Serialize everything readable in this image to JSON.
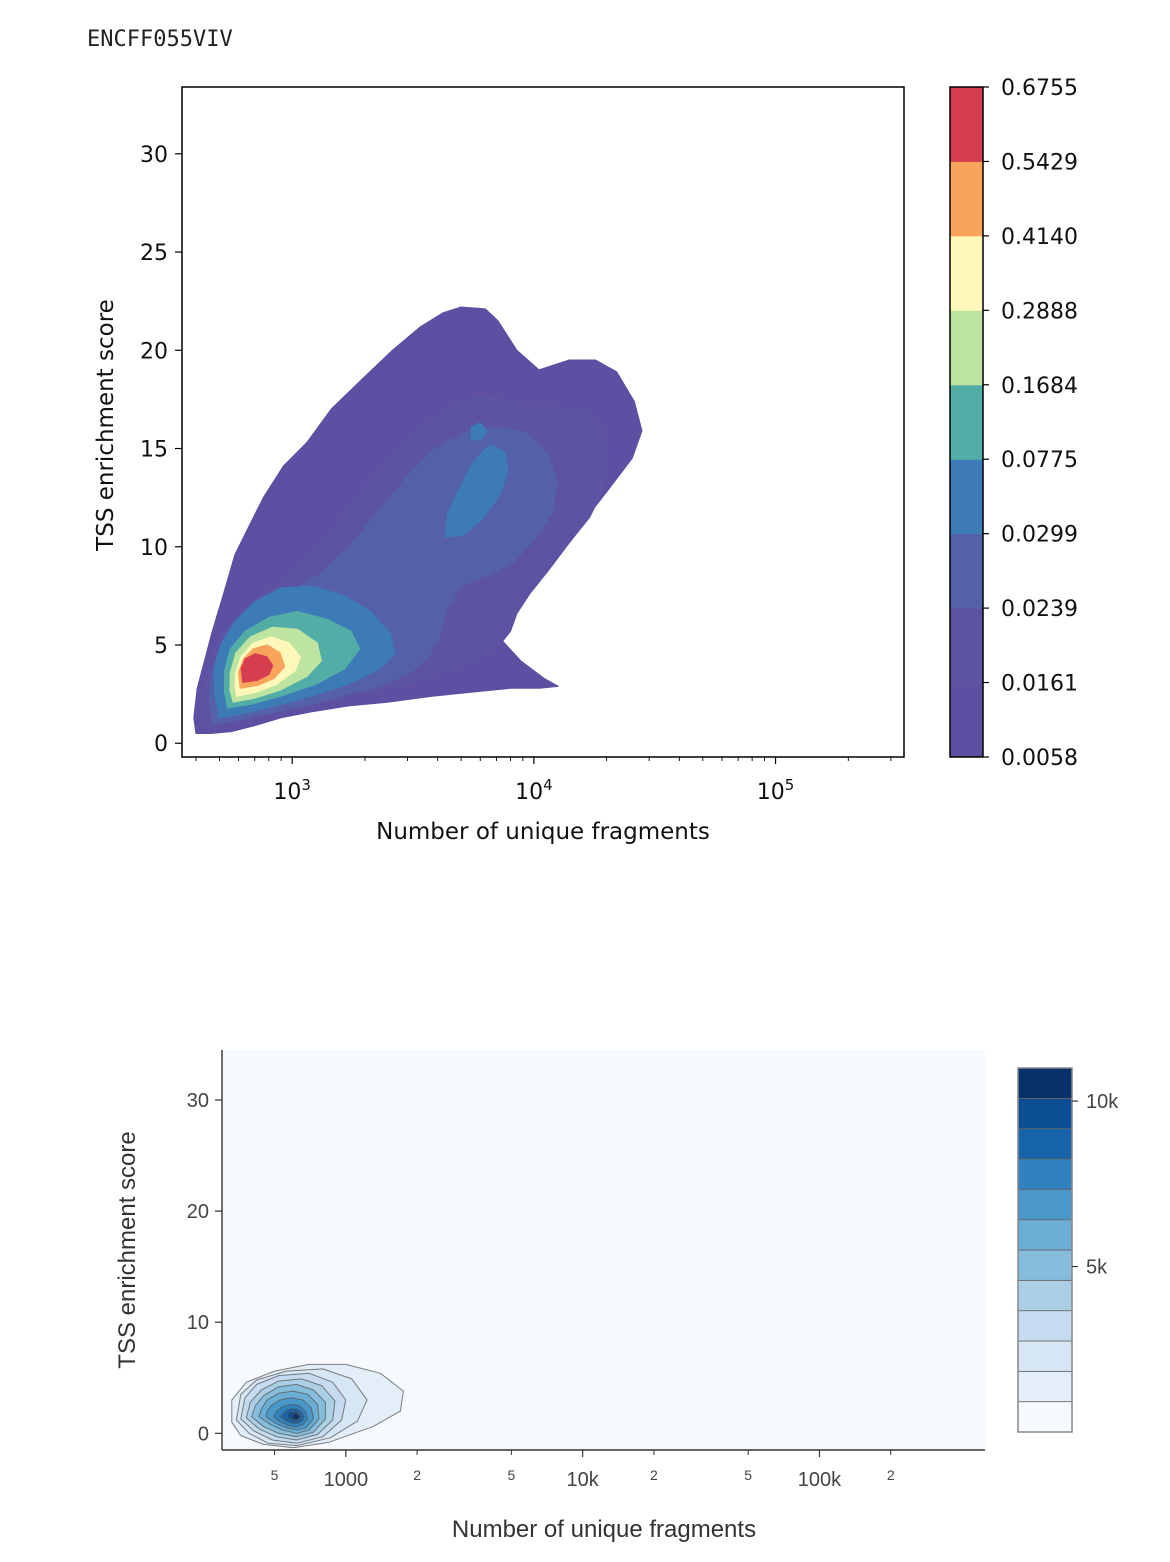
{
  "page": {
    "title": "ENCFF055VIV"
  },
  "chart_data": [
    {
      "type": "heatmap",
      "subtype": "filled-kde-contour",
      "xlabel": "Number of unique fragments",
      "ylabel": "TSS enrichment score",
      "xscale": "log",
      "xlim": [
        350,
        340000
      ],
      "ylim": [
        -0.7,
        33.4
      ],
      "x_ticks": [
        {
          "value": 1000,
          "base": "10",
          "exp": "3"
        },
        {
          "value": 10000,
          "base": "10",
          "exp": "4"
        },
        {
          "value": 100000,
          "base": "10",
          "exp": "5"
        }
      ],
      "y_ticks": [
        0,
        5,
        10,
        15,
        20,
        25,
        30
      ],
      "colorbar": {
        "levels": [
          "0.0058",
          "0.0161",
          "0.0239",
          "0.0299",
          "0.0775",
          "0.1684",
          "0.2888",
          "0.4140",
          "0.5429",
          "0.6755"
        ],
        "colors": [
          "#5e4fa2",
          "#5c53a3",
          "#5460a8",
          "#3d7bb7",
          "#52ada7",
          "#bde4a0",
          "#fff8b8",
          "#f9a45c",
          "#d53e4f"
        ]
      }
    },
    {
      "type": "heatmap",
      "subtype": "kde-contour",
      "xlabel": "Number of unique fragments",
      "ylabel": "TSS enrichment score",
      "xscale": "log",
      "xlim": [
        300,
        500000
      ],
      "ylim": [
        -1.5,
        34.5
      ],
      "y_ticks": [
        "0",
        "10",
        "20",
        "30"
      ],
      "x_major_ticks": [
        {
          "value": 1000,
          "label": "1000"
        },
        {
          "value": 10000,
          "label": "10k"
        },
        {
          "value": 100000,
          "label": "100k"
        }
      ],
      "x_minor_ticks": [
        {
          "value": 500,
          "label": "5"
        },
        {
          "value": 2000,
          "label": "2"
        },
        {
          "value": 5000,
          "label": "5"
        },
        {
          "value": 20000,
          "label": "2"
        },
        {
          "value": 50000,
          "label": "5"
        },
        {
          "value": 200000,
          "label": "2"
        }
      ],
      "colorbar": {
        "range": [
          0,
          11000
        ],
        "tick_labels": [
          {
            "value": 5000,
            "label": "5k"
          },
          {
            "value": 10000,
            "label": "10k"
          }
        ],
        "colors": [
          "#f7fbff",
          "#e3eef9",
          "#d6e6f4",
          "#c6dbef",
          "#abd0e6",
          "#86bcdc",
          "#6aaed6",
          "#4a98c9",
          "#3082be",
          "#1764ab",
          "#0b4e94",
          "#08306b"
        ]
      },
      "plot_background": "#f6f9fe",
      "peak": {
        "x": 620,
        "y": 1.5
      }
    }
  ]
}
